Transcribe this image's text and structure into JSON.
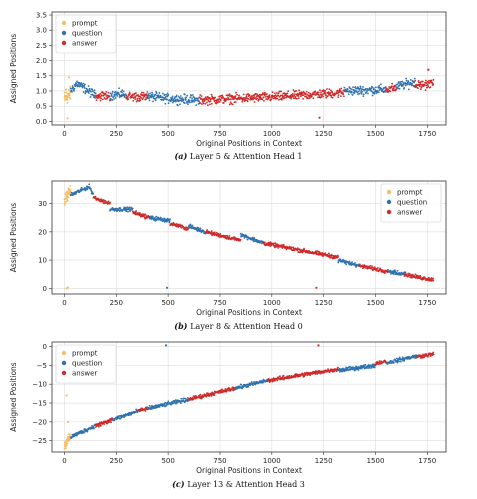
{
  "colors": {
    "prompt": "#f5be6a",
    "question": "#2f72ad",
    "answer": "#cf2a2a"
  },
  "chart_data": [
    {
      "type": "scatter",
      "caption_prefix": "(a)",
      "caption_text": "Layer 5 & Attention Head 1",
      "xlabel": "Original Positions in Context",
      "ylabel": "Assigned Positions",
      "xlim": [
        -60,
        1840
      ],
      "ylim": [
        -0.12,
        3.6
      ],
      "xticks": [
        0,
        250,
        500,
        750,
        1000,
        1250,
        1500,
        1750
      ],
      "yticks": [
        0.0,
        0.5,
        1.0,
        1.5,
        2.0,
        2.5,
        3.0,
        3.5
      ],
      "ytick_labels": [
        "0.0",
        "0.5",
        "1.0",
        "1.5",
        "2.0",
        "2.5",
        "3.0",
        "3.5"
      ],
      "grid": true,
      "legend": {
        "placement": "top-left",
        "entries": [
          "prompt",
          "question",
          "answer"
        ]
      },
      "series": [
        {
          "name": "prompt",
          "x_range": [
            0,
            30
          ],
          "trend": [
            [
              0,
              0.75
            ],
            [
              30,
              0.9
            ]
          ],
          "noise": 0.2,
          "outliers": [
            [
              8,
              1.05
            ],
            [
              15,
              0.1
            ],
            [
              22,
              1.45
            ]
          ]
        },
        {
          "name": "question",
          "segments": [
            [
              30,
              150
            ],
            [
              220,
              300
            ],
            [
              400,
              650
            ],
            [
              1350,
              1550
            ],
            [
              1600,
              1690
            ]
          ],
          "trend": [
            [
              30,
              1.0
            ],
            [
              60,
              1.25
            ],
            [
              150,
              0.85
            ],
            [
              300,
              0.9
            ],
            [
              500,
              0.75
            ],
            [
              650,
              0.7
            ],
            [
              1350,
              1.0
            ],
            [
              1550,
              1.05
            ],
            [
              1690,
              1.3
            ]
          ],
          "noise": 0.13,
          "outliers": []
        },
        {
          "name": "answer",
          "segments": [
            [
              150,
              220
            ],
            [
              300,
              400
            ],
            [
              650,
              1350
            ],
            [
              1550,
              1600
            ],
            [
              1690,
              1780
            ]
          ],
          "trend": [
            [
              150,
              0.85
            ],
            [
              400,
              0.8
            ],
            [
              650,
              0.7
            ],
            [
              1000,
              0.8
            ],
            [
              1350,
              0.95
            ],
            [
              1600,
              1.1
            ],
            [
              1780,
              1.25
            ]
          ],
          "noise": 0.13,
          "outliers": [
            [
              1230,
              0.12
            ],
            [
              1755,
              1.7
            ]
          ]
        }
      ]
    },
    {
      "type": "scatter",
      "caption_prefix": "(b)",
      "caption_text": "Layer 8 & Attention Head 0",
      "xlabel": "Original Positions in Context",
      "ylabel": "Assigned Positions",
      "xlim": [
        -60,
        1840
      ],
      "ylim": [
        -2,
        38
      ],
      "xticks": [
        0,
        250,
        500,
        750,
        1000,
        1250,
        1500,
        1750
      ],
      "yticks": [
        0,
        10,
        20,
        30
      ],
      "ytick_labels": [
        "0",
        "10",
        "20",
        "30"
      ],
      "grid": true,
      "legend": {
        "placement": "top-right",
        "entries": [
          "prompt",
          "question",
          "answer"
        ]
      },
      "series": [
        {
          "name": "prompt",
          "x_range": [
            0,
            30
          ],
          "trend": [
            [
              0,
              31
            ],
            [
              30,
              35
            ]
          ],
          "noise": 1.6,
          "outliers": [
            [
              10,
              0
            ],
            [
              18,
              0.3
            ]
          ]
        },
        {
          "name": "question",
          "segments": [
            [
              30,
              140
            ],
            [
              220,
              330
            ],
            [
              410,
              510
            ],
            [
              600,
              680
            ],
            [
              850,
              960
            ],
            [
              1320,
              1420
            ],
            [
              1560,
              1640
            ]
          ],
          "trend": [
            [
              30,
              33
            ],
            [
              120,
              36
            ],
            [
              140,
              33
            ],
            [
              220,
              28
            ],
            [
              330,
              28
            ],
            [
              410,
              25
            ],
            [
              510,
              24
            ],
            [
              600,
              22
            ],
            [
              680,
              20
            ],
            [
              850,
              19
            ],
            [
              960,
              16
            ],
            [
              1320,
              10
            ],
            [
              1420,
              8
            ],
            [
              1560,
              6
            ],
            [
              1640,
              5
            ]
          ],
          "noise": 0.6,
          "outliers": [
            [
              495,
              0.2
            ]
          ]
        },
        {
          "name": "answer",
          "segments": [
            [
              140,
              220
            ],
            [
              330,
              410
            ],
            [
              510,
              600
            ],
            [
              680,
              850
            ],
            [
              960,
              1320
            ],
            [
              1420,
              1560
            ],
            [
              1640,
              1780
            ]
          ],
          "trend": [
            [
              140,
              32
            ],
            [
              220,
              30
            ],
            [
              330,
              27
            ],
            [
              410,
              25
            ],
            [
              510,
              23
            ],
            [
              600,
              21
            ],
            [
              680,
              20
            ],
            [
              850,
              17
            ],
            [
              960,
              16
            ],
            [
              1100,
              14
            ],
            [
              1320,
              11
            ],
            [
              1420,
              8
            ],
            [
              1560,
              6
            ],
            [
              1640,
              5
            ],
            [
              1700,
              4
            ],
            [
              1780,
              3
            ]
          ],
          "noise": 0.6,
          "outliers": [
            [
              1215,
              0.2
            ]
          ]
        }
      ]
    },
    {
      "type": "scatter",
      "caption_prefix": "(c)",
      "caption_text": "Layer 13 & Attention Head 3",
      "xlabel": "Original Positions in Context",
      "ylabel": "Assigned Positions",
      "xlim": [
        -60,
        1840
      ],
      "ylim": [
        -28,
        1.2
      ],
      "xticks": [
        0,
        250,
        500,
        750,
        1000,
        1250,
        1500,
        1750
      ],
      "yticks": [
        0,
        -5,
        -10,
        -15,
        -20,
        -25
      ],
      "ytick_labels": [
        "0",
        "−5",
        "−10",
        "−15",
        "−20",
        "−25"
      ],
      "grid": true,
      "legend": {
        "placement": "top-left",
        "entries": [
          "prompt",
          "question",
          "answer"
        ]
      },
      "series": [
        {
          "name": "prompt",
          "x_range": [
            0,
            30
          ],
          "trend": [
            [
              0,
              -26
            ],
            [
              30,
              -24
            ]
          ],
          "noise": 1.0,
          "outliers": [
            [
              10,
              -13
            ],
            [
              18,
              -20
            ],
            [
              6,
              -27
            ]
          ]
        },
        {
          "name": "question",
          "segments": [
            [
              30,
              150
            ],
            [
              230,
              360
            ],
            [
              400,
              600
            ],
            [
              820,
              980
            ],
            [
              1320,
              1500
            ],
            [
              1550,
              1700
            ]
          ],
          "trend": [
            [
              30,
              -24
            ],
            [
              150,
              -21
            ],
            [
              360,
              -17
            ],
            [
              600,
              -14
            ],
            [
              980,
              -9
            ],
            [
              1500,
              -5
            ],
            [
              1700,
              -2.5
            ]
          ],
          "noise": 0.45,
          "outliers": [
            [
              490,
              0.3
            ]
          ]
        },
        {
          "name": "answer",
          "segments": [
            [
              150,
              230
            ],
            [
              360,
              400
            ],
            [
              600,
              820
            ],
            [
              980,
              1320
            ],
            [
              1500,
              1550
            ],
            [
              1700,
              1780
            ]
          ],
          "trend": [
            [
              150,
              -21
            ],
            [
              360,
              -17
            ],
            [
              600,
              -14
            ],
            [
              980,
              -9
            ],
            [
              1320,
              -6
            ],
            [
              1550,
              -4
            ],
            [
              1780,
              -2
            ]
          ],
          "noise": 0.45,
          "outliers": [
            [
              1225,
              0.3
            ]
          ]
        }
      ]
    }
  ]
}
